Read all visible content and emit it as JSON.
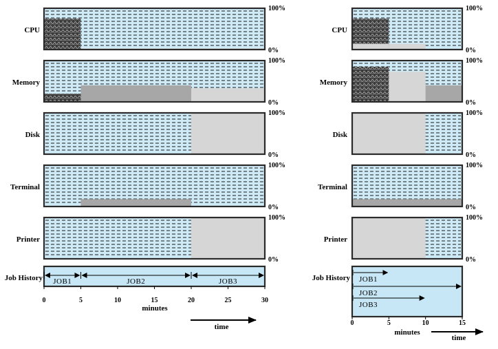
{
  "resources": [
    "CPU",
    "Memory",
    "Disk",
    "Terminal",
    "Printer"
  ],
  "row_labels": {
    "job_history": "Job History"
  },
  "scale_labels": {
    "top": "100%",
    "bottom": "0%"
  },
  "left_diagram": {
    "x_ticks": [
      "0",
      "5",
      "10",
      "15",
      "20",
      "25",
      "30"
    ],
    "x_unit": "minutes",
    "time_label": "time",
    "jobs": [
      {
        "name": "JOB1",
        "start": 0,
        "end": 5
      },
      {
        "name": "JOB2",
        "start": 5,
        "end": 20
      },
      {
        "name": "JOB3",
        "start": 20,
        "end": 30
      }
    ],
    "utilization": {
      "CPU": [
        {
          "from": 0,
          "to": 5,
          "level": 0.75,
          "pattern": "dark"
        },
        {
          "from": 5,
          "to": 20,
          "level": 0.03,
          "pattern": "light"
        },
        {
          "from": 20,
          "to": 30,
          "level": 0.03,
          "pattern": "light"
        }
      ],
      "Memory": [
        {
          "from": 0,
          "to": 5,
          "level": 0.2,
          "pattern": "dark"
        },
        {
          "from": 5,
          "to": 20,
          "level": 0.4,
          "pattern": "mid"
        },
        {
          "from": 20,
          "to": 30,
          "level": 0.33,
          "pattern": "light"
        }
      ],
      "Disk": [
        {
          "from": 20,
          "to": 30,
          "level": 1.0,
          "pattern": "light"
        }
      ],
      "Terminal": [
        {
          "from": 5,
          "to": 20,
          "level": 0.18,
          "pattern": "mid"
        }
      ],
      "Printer": [
        {
          "from": 20,
          "to": 30,
          "level": 1.0,
          "pattern": "light"
        }
      ]
    }
  },
  "right_diagram": {
    "x_ticks": [
      "0",
      "5",
      "10",
      "15"
    ],
    "x_unit": "minutes",
    "time_label": "time",
    "jobs": [
      {
        "name": "JOB1",
        "start": 0,
        "end": 5
      },
      {
        "name": "JOB2",
        "start": 0,
        "end": 15
      },
      {
        "name": "JOB3",
        "start": 0,
        "end": 10
      }
    ],
    "utilization": {
      "CPU": [
        {
          "from": 0,
          "to": 5,
          "level": 0.75,
          "pattern": "dark"
        },
        {
          "from": 5,
          "to": 10,
          "level": 0.14,
          "pattern": "light"
        },
        {
          "from": 0,
          "to": 5,
          "level": 0.14,
          "pattern": "light"
        }
      ],
      "Memory": [
        {
          "from": 0,
          "to": 15,
          "level": 0.4,
          "pattern": "mid"
        },
        {
          "from": 0,
          "to": 10,
          "level": 0.73,
          "pattern": "light"
        },
        {
          "from": 0,
          "to": 5,
          "level": 0.85,
          "pattern": "dark"
        }
      ],
      "Disk": [
        {
          "from": 0,
          "to": 10,
          "level": 1.0,
          "pattern": "light"
        }
      ],
      "Terminal": [
        {
          "from": 0,
          "to": 15,
          "level": 0.18,
          "pattern": "mid"
        }
      ],
      "Printer": [
        {
          "from": 0,
          "to": 10,
          "level": 1.0,
          "pattern": "light"
        }
      ]
    }
  },
  "colors": {
    "background_fill": "#cfeaf7",
    "dash_lines": "#1a1a1a",
    "light_block": "#d6d6d6",
    "mid_block": "#a7a7a7",
    "dark_block": "#3a3a3a",
    "history_fill": "#c8e7f6",
    "frame": "#2a2a2a"
  }
}
